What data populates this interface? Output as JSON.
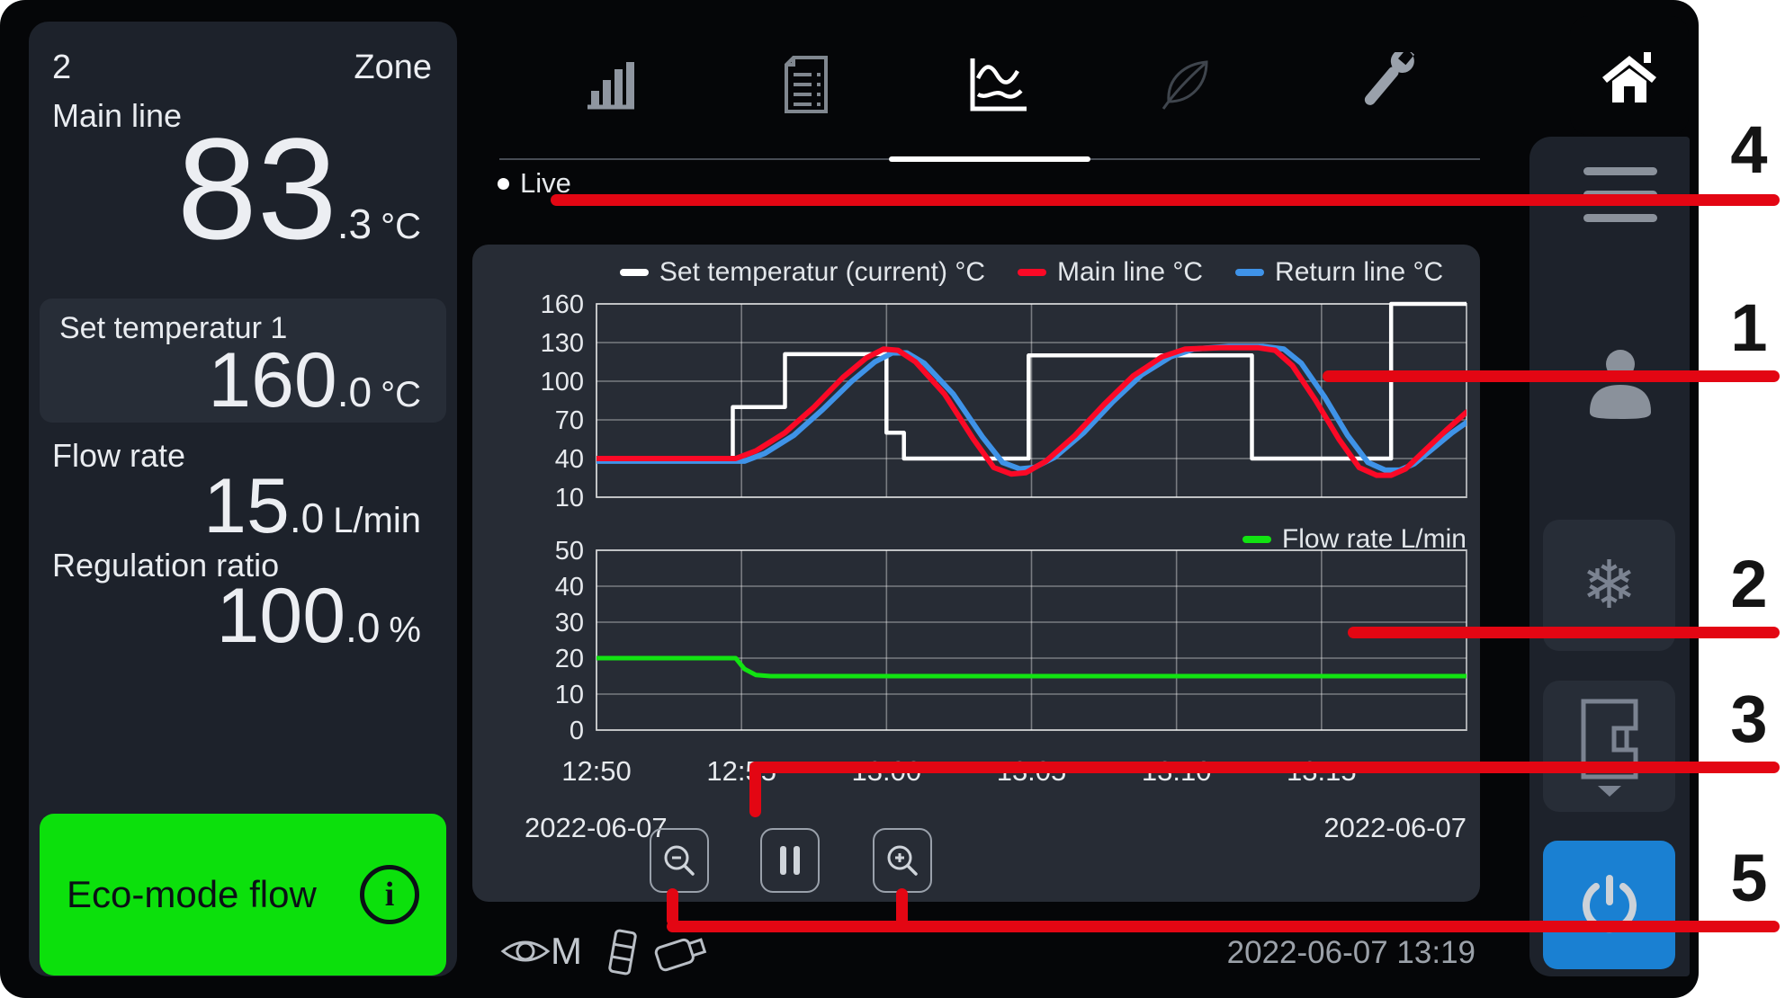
{
  "left_panel": {
    "zone_number": "2",
    "zone_label": "Zone",
    "main_line": {
      "label": "Main line",
      "value_int": "83",
      "value_dec": ".3",
      "unit": "°C"
    },
    "set_temp": {
      "label": "Set temperatur 1",
      "value_int": "160",
      "value_dec": ".0",
      "unit": "°C"
    },
    "flow_rate": {
      "label": "Flow rate",
      "value_int": "15",
      "value_dec": ".0",
      "unit": "L/min"
    },
    "regulation": {
      "label": "Regulation ratio",
      "value_int": "100",
      "value_dec": ".0",
      "unit": "%"
    },
    "eco_button": {
      "label": "Eco-mode flow",
      "color": "#0ce00c"
    }
  },
  "tabs": {
    "items": [
      {
        "name": "bar-chart"
      },
      {
        "name": "report-document"
      },
      {
        "name": "trend-curves",
        "active": true
      },
      {
        "name": "eco-leaf"
      },
      {
        "name": "service-wrench"
      }
    ],
    "active_index": 2
  },
  "live_label": "Live",
  "chart_data": [
    {
      "type": "line",
      "x_range": [
        0,
        30
      ],
      "x_tick_minutes": [
        0,
        5,
        10,
        15,
        20,
        25
      ],
      "x_ticks": [
        "12:50",
        "12:55",
        "13:00",
        "13:05",
        "13:10",
        "13:15"
      ],
      "show_x_labels": true,
      "y_range": [
        10,
        160
      ],
      "y_ticks": [
        160,
        130,
        100,
        70,
        40,
        10
      ],
      "date_left": "2022-06-07",
      "date_right": "2022-06-07",
      "grid": true,
      "legend_position": "top",
      "draw_order": [
        0,
        2,
        1
      ],
      "series": [
        {
          "name": "Set temperatur (current) °C",
          "color": "#ffffff",
          "width": 4.5,
          "points": [
            [
              0,
              40
            ],
            [
              4.7,
              40
            ],
            [
              4.7,
              80
            ],
            [
              6.5,
              80
            ],
            [
              6.5,
              121
            ],
            [
              10,
              121
            ],
            [
              10,
              60
            ],
            [
              10.6,
              60
            ],
            [
              10.6,
              40
            ],
            [
              14.9,
              40
            ],
            [
              14.9,
              120
            ],
            [
              22.6,
              120
            ],
            [
              22.6,
              40
            ],
            [
              27.4,
              40
            ],
            [
              27.4,
              160
            ],
            [
              30,
              160
            ]
          ]
        },
        {
          "name": "Main line °C",
          "color": "#fb0926",
          "width": 6,
          "points": [
            [
              0,
              40
            ],
            [
              4.8,
              40
            ],
            [
              5.5,
              46
            ],
            [
              6.5,
              60
            ],
            [
              7.5,
              80
            ],
            [
              8.5,
              103
            ],
            [
              9.3,
              118
            ],
            [
              9.9,
              125
            ],
            [
              10.4,
              124
            ],
            [
              11,
              115
            ],
            [
              12,
              90
            ],
            [
              13,
              55
            ],
            [
              13.7,
              33
            ],
            [
              14.3,
              28
            ],
            [
              14.8,
              29
            ],
            [
              15.5,
              38
            ],
            [
              16.5,
              58
            ],
            [
              17.5,
              82
            ],
            [
              18.5,
              104
            ],
            [
              19.5,
              119
            ],
            [
              20.3,
              125
            ],
            [
              21.5,
              126
            ],
            [
              22.8,
              126
            ],
            [
              23.4,
              124
            ],
            [
              24,
              112
            ],
            [
              24.8,
              85
            ],
            [
              25.6,
              55
            ],
            [
              26.3,
              33
            ],
            [
              26.9,
              27
            ],
            [
              27.4,
              27
            ],
            [
              27.9,
              32
            ],
            [
              28.5,
              45
            ],
            [
              29.3,
              62
            ],
            [
              30,
              76
            ]
          ]
        },
        {
          "name": "Return line °C",
          "color": "#3f93e8",
          "width": 6,
          "points": [
            [
              0,
              38
            ],
            [
              5.1,
              38
            ],
            [
              5.8,
              44
            ],
            [
              6.8,
              58
            ],
            [
              7.8,
              78
            ],
            [
              8.8,
              100
            ],
            [
              9.6,
              115
            ],
            [
              10.2,
              122
            ],
            [
              10.7,
              122
            ],
            [
              11.3,
              114
            ],
            [
              12.3,
              90
            ],
            [
              13.3,
              57
            ],
            [
              14,
              37
            ],
            [
              14.6,
              32
            ],
            [
              15.1,
              33
            ],
            [
              15.8,
              41
            ],
            [
              16.8,
              60
            ],
            [
              17.8,
              84
            ],
            [
              18.8,
              105
            ],
            [
              19.8,
              119
            ],
            [
              20.6,
              125
            ],
            [
              21.8,
              127
            ],
            [
              23,
              127
            ],
            [
              23.7,
              125
            ],
            [
              24.3,
              114
            ],
            [
              25.1,
              88
            ],
            [
              25.9,
              58
            ],
            [
              26.6,
              37
            ],
            [
              27.2,
              31
            ],
            [
              27.7,
              31
            ],
            [
              28.2,
              36
            ],
            [
              28.8,
              47
            ],
            [
              29.5,
              60
            ],
            [
              30,
              68
            ]
          ]
        }
      ]
    },
    {
      "type": "line",
      "x_range": [
        0,
        30
      ],
      "x_tick_minutes": [
        0,
        5,
        10,
        15,
        20,
        25
      ],
      "x_ticks": [
        "12:50",
        "12:55",
        "13:00",
        "13:05",
        "13:10",
        "13:15"
      ],
      "show_x_labels": false,
      "y_range": [
        0,
        50
      ],
      "y_ticks": [
        50,
        40,
        30,
        20,
        10,
        0
      ],
      "grid": true,
      "legend_position": "top-right",
      "draw_order": [
        0
      ],
      "series": [
        {
          "name": "Flow rate L/min",
          "color": "#12e312",
          "width": 5,
          "points": [
            [
              0,
              20
            ],
            [
              4.8,
              20
            ],
            [
              5.1,
              17
            ],
            [
              5.5,
              15.3
            ],
            [
              6,
              15
            ],
            [
              30,
              15
            ]
          ]
        }
      ]
    }
  ],
  "chart_controls": {
    "zoom_out": "zoom-out",
    "pause": "pause",
    "zoom_in": "zoom-in"
  },
  "sidebar": {
    "home": "home",
    "menu": "menu",
    "user": "user",
    "cooling": "snowflake",
    "mold": "mold-eject",
    "power": "power"
  },
  "status_bar": {
    "mode_letter": "M",
    "datetime": "2022-06-07  13:19"
  },
  "annotations": {
    "color": "#e30613",
    "labels": [
      "1",
      "2",
      "3",
      "4",
      "5"
    ]
  }
}
